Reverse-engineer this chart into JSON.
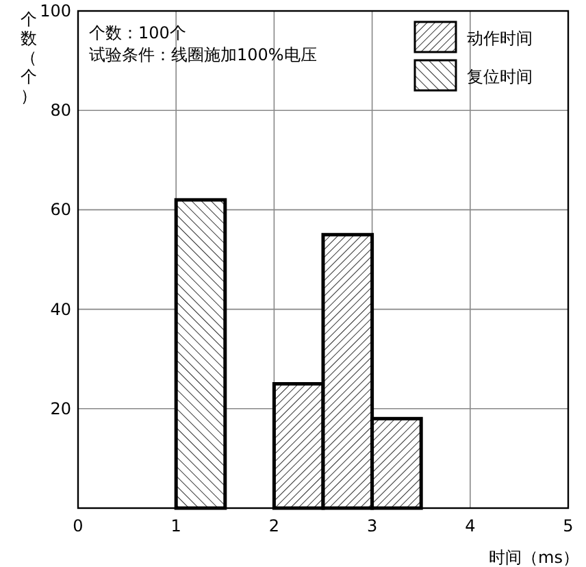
{
  "chart_data": {
    "type": "histogram",
    "xlabel": "时间（ms）",
    "ylabel": "个数（个）",
    "annotations": [
      "个数：100个",
      "试验条件：线圈施加100%电压"
    ],
    "series": [
      {
        "name": "动作时间",
        "color": "#000000",
        "values": [
          null,
          null,
          25,
          55,
          18
        ]
      },
      {
        "name": "复位时间",
        "color": "#000000",
        "values": [
          62,
          null,
          null,
          null,
          null
        ]
      }
    ],
    "bins": [
      1,
      1.5,
      2,
      2.5,
      3,
      3.5
    ],
    "xlim": [
      0,
      5
    ],
    "xticks": [
      0,
      1,
      2,
      3,
      4,
      5
    ],
    "ylim": [
      0,
      100
    ],
    "yticks": [
      {
        "value": 0,
        "label": null
      },
      20,
      40,
      60,
      80,
      100
    ],
    "grid": true,
    "legend": "top right"
  }
}
